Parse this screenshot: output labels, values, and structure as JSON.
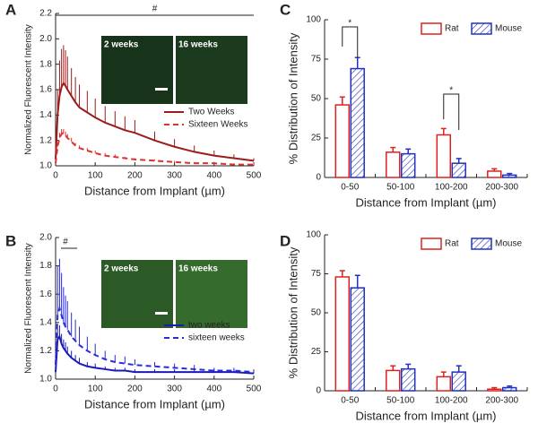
{
  "chart_data": [
    {
      "type": "line",
      "panel_label": "A",
      "xlabel": "Distance from Implant (µm)",
      "ylabel": "Normalized Fluorescent Intensity",
      "annotations": [
        "#"
      ],
      "inset_labels": [
        "2 weeks",
        "16 weeks"
      ],
      "legend_position": "lower right",
      "x": [
        0,
        5,
        10,
        15,
        20,
        25,
        30,
        40,
        50,
        60,
        80,
        100,
        125,
        150,
        175,
        200,
        250,
        300,
        350,
        400,
        450,
        500
      ],
      "xlim": [
        0,
        500
      ],
      "xticks": [
        0,
        100,
        200,
        300,
        400,
        500
      ],
      "ylim": [
        1.0,
        2.2
      ],
      "yticks": [
        {
          "value": 1.0,
          "label": "1.0"
        },
        {
          "value": 1.2,
          "label": "1.2"
        },
        {
          "value": 1.4,
          "label": "1.4"
        },
        {
          "value": 1.6,
          "label": "1.6"
        },
        {
          "value": 1.8,
          "label": "1.8"
        },
        {
          "value": 2.0,
          "label": "2.0"
        },
        {
          "value": 2.2,
          "label": "2.2"
        }
      ],
      "series": [
        {
          "name": "Two Weeks",
          "color": "#9b1c1c",
          "linestyle": "solid",
          "values": [
            1.05,
            1.4,
            1.55,
            1.62,
            1.65,
            1.63,
            1.6,
            1.55,
            1.5,
            1.46,
            1.42,
            1.38,
            1.34,
            1.31,
            1.28,
            1.26,
            1.2,
            1.15,
            1.11,
            1.08,
            1.06,
            1.04
          ],
          "errors": [
            0.05,
            0.2,
            0.28,
            0.3,
            0.3,
            0.28,
            0.26,
            0.22,
            0.2,
            0.18,
            0.17,
            0.15,
            0.13,
            0.12,
            0.11,
            0.1,
            0.07,
            0.06,
            0.05,
            0.04,
            0.03,
            0.02
          ]
        },
        {
          "name": "Sixteen Weeks",
          "color": "#e03030",
          "linestyle": "dashed",
          "values": [
            1.02,
            1.15,
            1.22,
            1.25,
            1.26,
            1.24,
            1.22,
            1.19,
            1.16,
            1.14,
            1.12,
            1.1,
            1.08,
            1.07,
            1.06,
            1.05,
            1.04,
            1.03,
            1.02,
            1.02,
            1.01,
            1.01
          ],
          "errors": [
            0.01,
            0.03,
            0.04,
            0.04,
            0.03,
            0.03,
            0.03,
            0.03,
            0.02,
            0.02,
            0.02,
            0.02,
            0.02,
            0.02,
            0.01,
            0.01,
            0.01,
            0.01,
            0.01,
            0.01,
            0.01,
            0.01
          ]
        }
      ]
    },
    {
      "type": "line",
      "panel_label": "B",
      "xlabel": "Distance from Implant (µm)",
      "ylabel": "Normalized Fluorescent Intensity",
      "annotations": [
        "#"
      ],
      "inset_labels": [
        "2 weeks",
        "16 weeks"
      ],
      "legend_position": "lower right",
      "x": [
        0,
        5,
        10,
        15,
        20,
        25,
        30,
        40,
        50,
        60,
        80,
        100,
        125,
        150,
        175,
        200,
        250,
        300,
        350,
        400,
        450,
        500
      ],
      "xlim": [
        0,
        500
      ],
      "xticks": [
        0,
        100,
        200,
        300,
        400,
        500
      ],
      "ylim": [
        1.0,
        2.0
      ],
      "yticks": [
        {
          "value": 1.0,
          "label": "1.0"
        },
        {
          "value": 1.2,
          "label": "1.2"
        },
        {
          "value": 1.4,
          "label": "1.4"
        },
        {
          "value": 1.6,
          "label": "1.6"
        },
        {
          "value": 1.8,
          "label": "1.8"
        },
        {
          "value": 2.0,
          "label": "2.0"
        }
      ],
      "series": [
        {
          "name": "two weeks",
          "color": "#1a1ab8",
          "linestyle": "solid",
          "values": [
            1.05,
            1.28,
            1.3,
            1.25,
            1.22,
            1.2,
            1.18,
            1.15,
            1.13,
            1.11,
            1.09,
            1.08,
            1.07,
            1.06,
            1.06,
            1.05,
            1.05,
            1.05,
            1.05,
            1.05,
            1.05,
            1.04
          ],
          "errors": [
            0.02,
            0.08,
            0.08,
            0.07,
            0.06,
            0.06,
            0.05,
            0.05,
            0.04,
            0.04,
            0.03,
            0.03,
            0.02,
            0.02,
            0.02,
            0.02,
            0.02,
            0.02,
            0.02,
            0.02,
            0.02,
            0.02
          ]
        },
        {
          "name": "sixteen weeks",
          "color": "#2a2ae0",
          "linestyle": "dashed",
          "values": [
            1.1,
            1.45,
            1.5,
            1.45,
            1.4,
            1.37,
            1.35,
            1.3,
            1.27,
            1.24,
            1.2,
            1.17,
            1.14,
            1.12,
            1.11,
            1.1,
            1.09,
            1.08,
            1.07,
            1.06,
            1.06,
            1.05
          ],
          "errors": [
            0.05,
            0.35,
            0.35,
            0.3,
            0.25,
            0.22,
            0.2,
            0.17,
            0.15,
            0.13,
            0.1,
            0.08,
            0.06,
            0.05,
            0.05,
            0.04,
            0.03,
            0.03,
            0.03,
            0.02,
            0.02,
            0.02
          ]
        }
      ]
    },
    {
      "type": "bar",
      "panel_label": "C",
      "xlabel": "Distance from Implant (µm)",
      "ylabel": "% Distribution of Intensity",
      "annotations": [
        "*",
        "*"
      ],
      "legend_position": "upper right",
      "categories": [
        "0-50",
        "50-100",
        "100-200",
        "200-300"
      ],
      "ylim": [
        0,
        100
      ],
      "yticks": [
        0,
        25,
        50,
        75,
        100
      ],
      "series": [
        {
          "name": "Rat",
          "color": "#e02020",
          "values": [
            46,
            16,
            27,
            4
          ],
          "errors": [
            5,
            3,
            4,
            1.5
          ]
        },
        {
          "name": "Mouse",
          "color": "#2030c0",
          "values": [
            69,
            15,
            9,
            1.5
          ],
          "errors": [
            7,
            3,
            3,
            1
          ]
        }
      ]
    },
    {
      "type": "bar",
      "panel_label": "D",
      "xlabel": "Distance from Implant (µm)",
      "ylabel": "% Distribution of Intensity",
      "legend_position": "upper right",
      "categories": [
        "0-50",
        "50-100",
        "100-200",
        "200-300"
      ],
      "ylim": [
        0,
        100
      ],
      "yticks": [
        0,
        25,
        50,
        75,
        100
      ],
      "series": [
        {
          "name": "Rat",
          "color": "#e02020",
          "values": [
            73,
            13,
            9,
            1
          ],
          "errors": [
            4,
            3,
            3,
            1
          ]
        },
        {
          "name": "Mouse",
          "color": "#2030c0",
          "values": [
            66,
            14,
            12,
            2
          ],
          "errors": [
            8,
            3,
            4,
            1
          ]
        }
      ]
    }
  ]
}
